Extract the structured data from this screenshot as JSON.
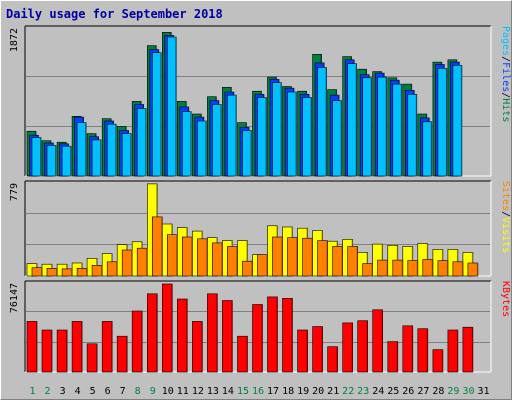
{
  "window": {
    "title": "Daily usage for September 2018"
  },
  "colors": {
    "background": "#c0c0c0",
    "plot_background": "#c0c0c0",
    "grid": "#808080",
    "title": "#0000a0",
    "hits": "#008040",
    "files": "#0040ff",
    "pages": "#00c0ff",
    "visits": "#ffff00",
    "sites": "#ff8000",
    "kbytes": "#ff0000",
    "weekday_label": "#000000",
    "weekend_label": "#008040"
  },
  "legends": {
    "hits_files_pages": [
      {
        "label": "Hits",
        "color": "#008040"
      },
      {
        "sep": "/"
      },
      {
        "label": "Files",
        "color": "#0040ff"
      },
      {
        "sep": "/"
      },
      {
        "label": "Pages",
        "color": "#00c0ff"
      }
    ],
    "visits_sites": [
      {
        "label": "Visits",
        "color": "#ffff00"
      },
      {
        "sep": "/"
      },
      {
        "label": "Sites",
        "color": "#ff8000"
      }
    ],
    "kbytes": [
      {
        "label": "KBytes",
        "color": "#ff0000"
      }
    ]
  },
  "chart_data": [
    {
      "type": "bar",
      "panel": "hits_files_pages",
      "ymax_label": "1872",
      "ylim": [
        0,
        1872
      ],
      "x": [
        1,
        2,
        3,
        4,
        5,
        6,
        7,
        8,
        9,
        10,
        11,
        12,
        13,
        14,
        15,
        16,
        17,
        18,
        19,
        20,
        21,
        22,
        23,
        24,
        25,
        26,
        27,
        28,
        29,
        30,
        31
      ],
      "weekend_days": [
        1,
        2,
        8,
        9,
        15,
        16,
        22,
        23,
        29,
        30
      ],
      "series": [
        {
          "name": "Hits",
          "values": [
            570,
            450,
            430,
            760,
            540,
            730,
            630,
            950,
            1660,
            1830,
            950,
            790,
            1010,
            1130,
            680,
            1080,
            1260,
            1140,
            1080,
            1550,
            1100,
            1520,
            1360,
            1330,
            1250,
            1170,
            790,
            1450,
            1480,
            null,
            null
          ]
        },
        {
          "name": "Files",
          "values": [
            520,
            420,
            410,
            750,
            500,
            700,
            580,
            910,
            1610,
            1790,
            880,
            750,
            960,
            1070,
            620,
            1040,
            1230,
            1120,
            1040,
            1440,
            1030,
            1480,
            1290,
            1310,
            1220,
            1090,
            740,
            1420,
            1450,
            null,
            null
          ]
        },
        {
          "name": "Pages",
          "values": [
            490,
            390,
            380,
            680,
            460,
            660,
            540,
            860,
            1570,
            1770,
            820,
            700,
            910,
            1030,
            580,
            1000,
            1190,
            1070,
            1000,
            1380,
            960,
            1430,
            1250,
            1260,
            1170,
            1040,
            690,
            1370,
            1410,
            null,
            null
          ]
        }
      ]
    },
    {
      "type": "bar",
      "panel": "visits_sites",
      "ymax_label": "779",
      "ylim": [
        0,
        779
      ],
      "x": [
        1,
        2,
        3,
        4,
        5,
        6,
        7,
        8,
        9,
        10,
        11,
        12,
        13,
        14,
        15,
        16,
        17,
        18,
        19,
        20,
        21,
        22,
        23,
        24,
        25,
        26,
        27,
        28,
        29,
        30,
        31
      ],
      "series": [
        {
          "name": "Visits",
          "values": [
            105,
            100,
            100,
            110,
            150,
            190,
            265,
            290,
            780,
            440,
            410,
            380,
            325,
            300,
            300,
            180,
            425,
            415,
            405,
            385,
            295,
            310,
            200,
            270,
            260,
            250,
            275,
            225,
            225,
            200,
            null
          ]
        },
        {
          "name": "Sites",
          "values": [
            70,
            65,
            60,
            65,
            90,
            120,
            220,
            235,
            500,
            350,
            330,
            315,
            280,
            250,
            125,
            180,
            330,
            325,
            320,
            300,
            250,
            250,
            105,
            135,
            135,
            130,
            140,
            130,
            120,
            110,
            null
          ]
        }
      ]
    },
    {
      "type": "bar",
      "panel": "kbytes",
      "ymax_label": "76147",
      "ylim": [
        0,
        76147
      ],
      "x": [
        1,
        2,
        3,
        4,
        5,
        6,
        7,
        8,
        9,
        10,
        11,
        12,
        13,
        14,
        15,
        16,
        17,
        18,
        19,
        20,
        21,
        22,
        23,
        24,
        25,
        26,
        27,
        28,
        29,
        30,
        31
      ],
      "series": [
        {
          "name": "KBytes",
          "values": [
            43800,
            36300,
            36300,
            43800,
            24400,
            43800,
            31000,
            52800,
            67700,
            76147,
            63200,
            43800,
            67700,
            61900,
            31000,
            58400,
            65000,
            63800,
            36300,
            39400,
            21900,
            42500,
            44400,
            53800,
            26300,
            40000,
            37500,
            19400,
            36300,
            38800,
            null
          ]
        }
      ]
    }
  ]
}
